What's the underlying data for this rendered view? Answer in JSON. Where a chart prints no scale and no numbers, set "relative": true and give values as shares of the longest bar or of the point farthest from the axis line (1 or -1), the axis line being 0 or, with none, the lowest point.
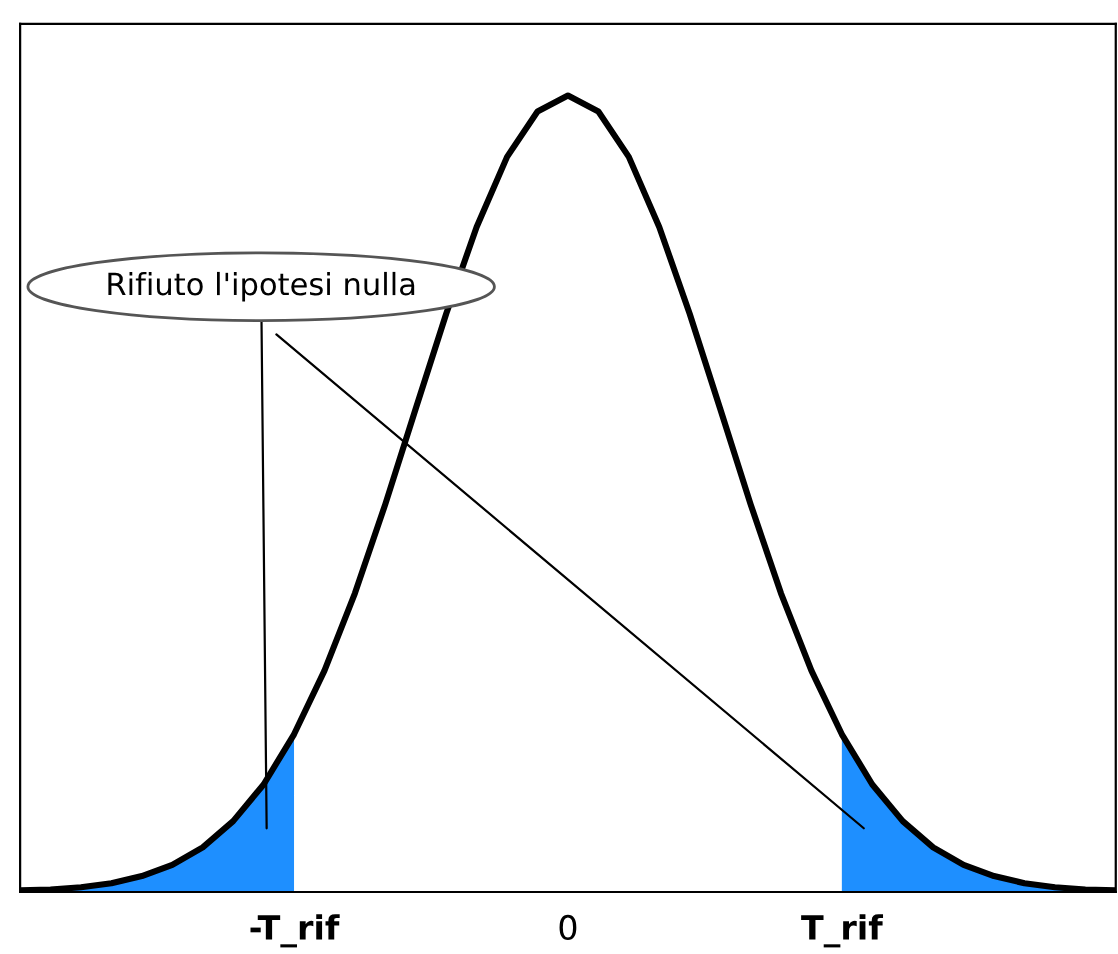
{
  "chart_data": {
    "type": "line",
    "relative": true,
    "categories": [
      null,
      null,
      null,
      null,
      null,
      null,
      null,
      null,
      null,
      "-T_rif",
      null,
      null,
      null,
      null,
      null,
      null,
      null,
      null,
      "0",
      null,
      null,
      null,
      null,
      null,
      null,
      null,
      null,
      "T_rif",
      null,
      null,
      null,
      null,
      null,
      null,
      null,
      null,
      null
    ],
    "tick_labels": "x",
    "grid": false,
    "legend": false,
    "annotations": [
      "Rifiuto l'ipotesi nulla"
    ],
    "series": [
      {
        "color": "#000000",
        "values": [
          0.002,
          0.003,
          0.006,
          0.011,
          0.02,
          0.034,
          0.056,
          0.089,
          0.135,
          0.198,
          0.278,
          0.375,
          0.487,
          0.607,
          0.726,
          0.835,
          0.923,
          0.98,
          1,
          0.98,
          0.923,
          0.835,
          0.726,
          0.607,
          0.487,
          0.375,
          0.278,
          0.198,
          0.135,
          0.089,
          0.056,
          0.034,
          0.02,
          0.011,
          0.006,
          0.003,
          0.002
        ]
      },
      {
        "type": "area",
        "color": "#1e8fff",
        "values": [
          0.002,
          0.003,
          0.006,
          0.011,
          0.02,
          0.034,
          0.056,
          0.089,
          0.135,
          0.198,
          null,
          null,
          null,
          null,
          null,
          null,
          null,
          null,
          null,
          null,
          null,
          null,
          null,
          null,
          null,
          null,
          null,
          null,
          null,
          null,
          null,
          null,
          null,
          null,
          null,
          null,
          null
        ]
      },
      {
        "type": "area",
        "color": "#1e8fff",
        "values": [
          null,
          null,
          null,
          null,
          null,
          null,
          null,
          null,
          null,
          null,
          null,
          null,
          null,
          null,
          null,
          null,
          null,
          null,
          null,
          null,
          null,
          null,
          null,
          null,
          null,
          null,
          null,
          0.198,
          0.135,
          0.089,
          0.056,
          0.034,
          0.02,
          0.011,
          0.006,
          0.003,
          0.002
        ]
      }
    ]
  }
}
